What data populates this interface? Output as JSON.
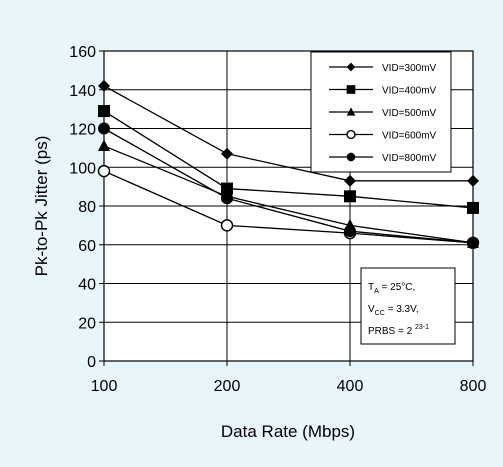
{
  "chart_data": {
    "type": "line",
    "x_scale": "log2",
    "categories": [
      "100",
      "200",
      "400",
      "800"
    ],
    "x": [
      100,
      200,
      400,
      800
    ],
    "xlabel": "Data Rate (Mbps)",
    "ylabel": "Pk-to-Pk Jitter (ps)",
    "ylim": [
      0,
      160
    ],
    "yticks": [
      "0",
      "20",
      "40",
      "60",
      "80",
      "100",
      "120",
      "140",
      "160"
    ],
    "grid": "x and y major",
    "legend_position": "top-right",
    "series": [
      {
        "name": "VID=300mV",
        "marker": "diamond",
        "values": [
          142,
          107,
          93,
          93
        ]
      },
      {
        "name": "VID=400mV",
        "marker": "square",
        "values": [
          129,
          89,
          85,
          79
        ]
      },
      {
        "name": "VID=500mV",
        "marker": "triangle",
        "values": [
          111,
          85,
          70,
          61
        ]
      },
      {
        "name": "VID=600mV",
        "marker": "open-circle",
        "values": [
          98,
          70,
          66,
          61
        ]
      },
      {
        "name": "VID=800mV",
        "marker": "filled-circle",
        "values": [
          120,
          84,
          67,
          61
        ]
      }
    ],
    "annotation": {
      "line1_main": "T",
      "line1_sub": "A",
      "line1_rest": " = 25°C,",
      "line2_main": "V",
      "line2_sub": "CC",
      "line2_rest": " = 3.3V,",
      "line3_main": "PRBS = 2 ",
      "line3_sup": "23-1"
    },
    "colors": {
      "background": "#e8f6fb",
      "plot": "#ffffff",
      "ink": "#000000"
    }
  }
}
